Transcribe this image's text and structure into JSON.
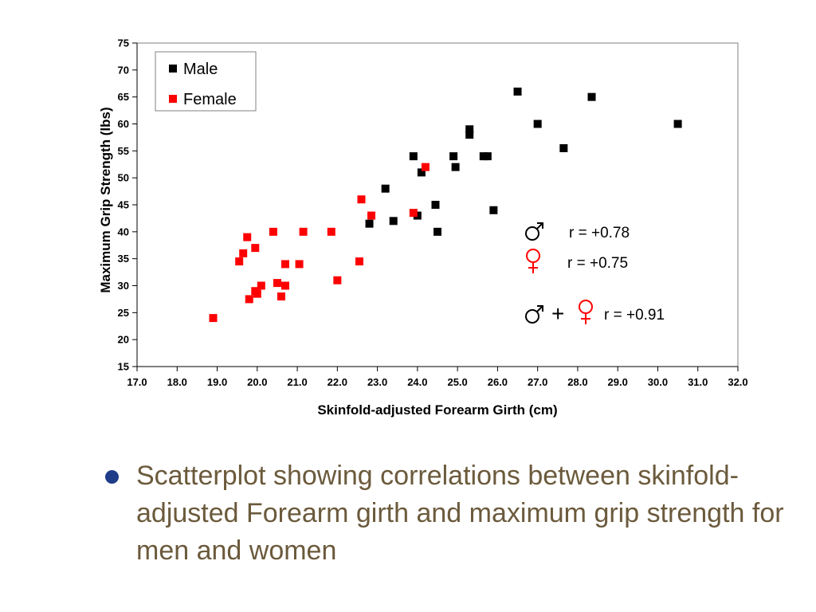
{
  "chart_data": {
    "type": "scatter",
    "title": "",
    "xlabel": "Skinfold-adjusted Forearm Girth (cm)",
    "ylabel": "Maximum Grip Strength (lbs)",
    "xlim": [
      17.0,
      32.0
    ],
    "ylim": [
      15,
      75
    ],
    "x_ticks": [
      "17.0",
      "18.0",
      "19.0",
      "20.0",
      "21.0",
      "22.0",
      "23.0",
      "24.0",
      "25.0",
      "26.0",
      "27.0",
      "28.0",
      "29.0",
      "30.0",
      "31.0",
      "32.0"
    ],
    "y_ticks": [
      "15",
      "20",
      "25",
      "30",
      "35",
      "40",
      "45",
      "50",
      "55",
      "60",
      "65",
      "70",
      "75"
    ],
    "grid": false,
    "legend": {
      "placement": "top-left"
    },
    "series": [
      {
        "name": "Male",
        "color": "#000000",
        "marker": "square",
        "points": [
          [
            22.8,
            41.5
          ],
          [
            23.2,
            48
          ],
          [
            23.4,
            42
          ],
          [
            23.9,
            54
          ],
          [
            24.0,
            43
          ],
          [
            24.1,
            51
          ],
          [
            24.45,
            45
          ],
          [
            24.5,
            40
          ],
          [
            24.9,
            54
          ],
          [
            24.95,
            52
          ],
          [
            25.3,
            58
          ],
          [
            25.3,
            59
          ],
          [
            25.65,
            54
          ],
          [
            25.75,
            54
          ],
          [
            25.9,
            44
          ],
          [
            26.5,
            66
          ],
          [
            27.0,
            60
          ],
          [
            27.65,
            55.5
          ],
          [
            28.35,
            65
          ],
          [
            30.5,
            60
          ]
        ]
      },
      {
        "name": "Female",
        "color": "#ff0000",
        "marker": "square",
        "points": [
          [
            18.9,
            24
          ],
          [
            19.55,
            34.5
          ],
          [
            19.65,
            36
          ],
          [
            19.75,
            39
          ],
          [
            19.8,
            27.5
          ],
          [
            19.95,
            37
          ],
          [
            19.95,
            29
          ],
          [
            20.0,
            28.5
          ],
          [
            20.1,
            30
          ],
          [
            20.4,
            40
          ],
          [
            20.5,
            30.5
          ],
          [
            20.6,
            28
          ],
          [
            20.7,
            34
          ],
          [
            20.7,
            30
          ],
          [
            21.05,
            34
          ],
          [
            21.15,
            40
          ],
          [
            21.85,
            40
          ],
          [
            22.0,
            31
          ],
          [
            22.55,
            34.5
          ],
          [
            22.6,
            46
          ],
          [
            22.85,
            43
          ],
          [
            23.9,
            43.5
          ],
          [
            24.2,
            52
          ]
        ]
      }
    ],
    "annotations": [
      {
        "symbols": [
          "male"
        ],
        "text": "r = +0.78"
      },
      {
        "symbols": [
          "female"
        ],
        "text": "r = +0.75"
      },
      {
        "symbols": [
          "male",
          "female"
        ],
        "joiner": "+",
        "text": "r = +0.91"
      }
    ]
  },
  "caption": {
    "text": "Scatterplot showing correlations between skinfold-adjusted Forearm girth and maximum grip strength for men and women",
    "text_color": "#6b5a3c",
    "bullet_color": "#1f3c88"
  }
}
